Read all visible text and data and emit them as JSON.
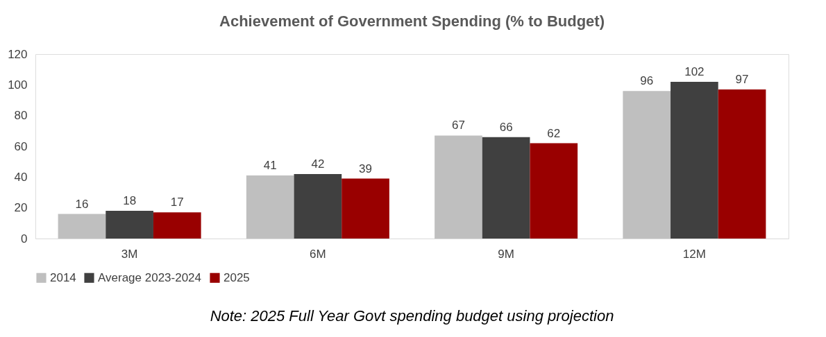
{
  "chart_data": {
    "type": "bar",
    "title": "Achievement of Government Spending (% to Budget)",
    "categories": [
      "3M",
      "6M",
      "9M",
      "12M"
    ],
    "series": [
      {
        "name": "2014",
        "color": "#bfbfbf",
        "values": [
          16,
          41,
          67,
          96
        ]
      },
      {
        "name": "Average 2023-2024",
        "color": "#404040",
        "values": [
          18,
          42,
          66,
          102
        ]
      },
      {
        "name": "2025",
        "color": "#990000",
        "values": [
          17,
          39,
          62,
          97
        ]
      }
    ],
    "ylim": [
      0,
      120
    ],
    "yticks": [
      0,
      20,
      40,
      60,
      80,
      100,
      120
    ],
    "grid": false,
    "legend": "bottom",
    "data_labels": true,
    "annotations": [
      "Note: 2025 Full Year Govt spending budget using projection"
    ]
  }
}
